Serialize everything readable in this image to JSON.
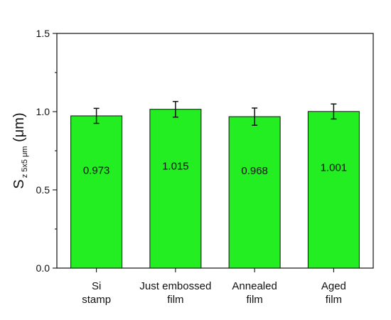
{
  "chart_data": {
    "type": "bar",
    "categories": [
      [
        "Si",
        "stamp"
      ],
      [
        "Just embossed",
        "film"
      ],
      [
        "Annealed",
        "film"
      ],
      [
        "Aged",
        "film"
      ]
    ],
    "values": [
      0.973,
      1.015,
      0.968,
      1.001
    ],
    "errors": [
      0.048,
      0.05,
      0.055,
      0.048
    ],
    "data_labels": [
      "0.973",
      "1.015",
      "0.968",
      "1.001"
    ],
    "ylim": [
      0.0,
      1.5
    ],
    "yticks": [
      0.0,
      0.5,
      1.0,
      1.5
    ],
    "ytick_labels": [
      "0.0",
      "0.5",
      "1.0",
      "1.5"
    ],
    "ylabel": {
      "main": "S",
      "subscript": "z 5x5 μm",
      "unit": " (μm)"
    },
    "bar_color": "#22ee22",
    "grid": false,
    "legend": "none"
  }
}
